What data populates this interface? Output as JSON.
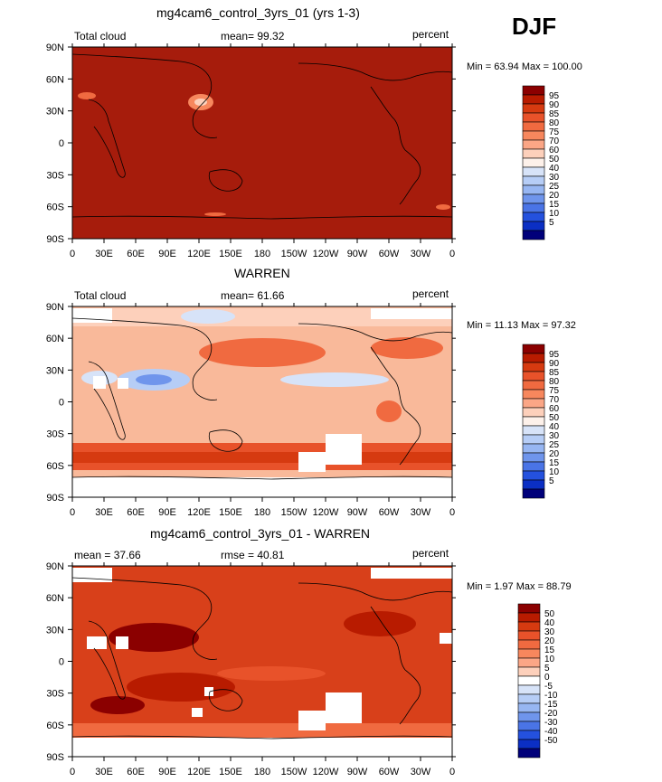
{
  "season": "DJF",
  "panels": [
    {
      "title": "mg4cam6_control_3yrs_01 (yrs 1-3)",
      "left_label": "Total cloud",
      "center_label": "mean=   99.32",
      "right_label": "percent",
      "min_max": "Min =   63.94  Max =  100.00",
      "colorbar": "abs"
    },
    {
      "title": "WARREN",
      "left_label": "Total cloud",
      "center_label": "mean=   61.66",
      "right_label": "percent",
      "min_max": "Min =   11.13  Max =   97.32",
      "colorbar": "abs"
    },
    {
      "title": "mg4cam6_control_3yrs_01 - WARREN",
      "left_label": "mean =   37.66",
      "center_label": "rmse =   40.81",
      "right_label": "percent",
      "min_max": "Min =    1.97  Max =   88.79",
      "colorbar": "diff"
    }
  ],
  "axes": {
    "x_ticks": [
      "0",
      "30E",
      "60E",
      "90E",
      "120E",
      "150E",
      "180",
      "150W",
      "120W",
      "90W",
      "60W",
      "30W",
      "0"
    ],
    "y_ticks": [
      "90N",
      "60N",
      "30N",
      "0",
      "30S",
      "60S",
      "90S"
    ]
  },
  "colorbars": {
    "abs": {
      "labels": [
        "95",
        "90",
        "85",
        "80",
        "75",
        "70",
        "60",
        "50",
        "40",
        "30",
        "25",
        "20",
        "15",
        "10",
        "5"
      ],
      "colors": [
        "#8b0000",
        "#b81b00",
        "#d63a10",
        "#e8522a",
        "#f06a40",
        "#f7875d",
        "#fba686",
        "#fdd0bb",
        "#fdf1ea",
        "#d7e3f8",
        "#b6cdf6",
        "#97b6f2",
        "#6f95ec",
        "#4a74e6",
        "#2451de",
        "#0b2fc4",
        "#00007a"
      ]
    },
    "diff": {
      "labels": [
        "50",
        "40",
        "30",
        "20",
        "15",
        "10",
        "5",
        "0",
        "-5",
        "-10",
        "-15",
        "-20",
        "-30",
        "-40",
        "-50"
      ],
      "colors": [
        "#8b0000",
        "#b81b00",
        "#d63a10",
        "#e8522a",
        "#f06a40",
        "#f7875d",
        "#fba686",
        "#fdd0bb",
        "#ffffff",
        "#d7e3f8",
        "#b6cdf6",
        "#97b6f2",
        "#6f95ec",
        "#4a74e6",
        "#2451de",
        "#0b2fc4",
        "#00007a"
      ]
    }
  },
  "fields": {
    "panel1_background": "#a61c0c",
    "panel2_background": "#f9b99a",
    "panel3_background": "#d8401a"
  }
}
